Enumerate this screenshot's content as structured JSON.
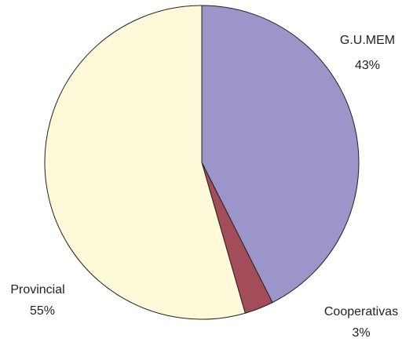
{
  "chart_data": {
    "type": "pie",
    "categories": [
      "G.U.MEM",
      "Cooperativas",
      "Provincial"
    ],
    "values": [
      43,
      3,
      55
    ],
    "value_labels": [
      "43%",
      "3%",
      "55%"
    ],
    "colors": [
      "#9b95c9",
      "#a34d5a",
      "#fef9d8"
    ]
  }
}
